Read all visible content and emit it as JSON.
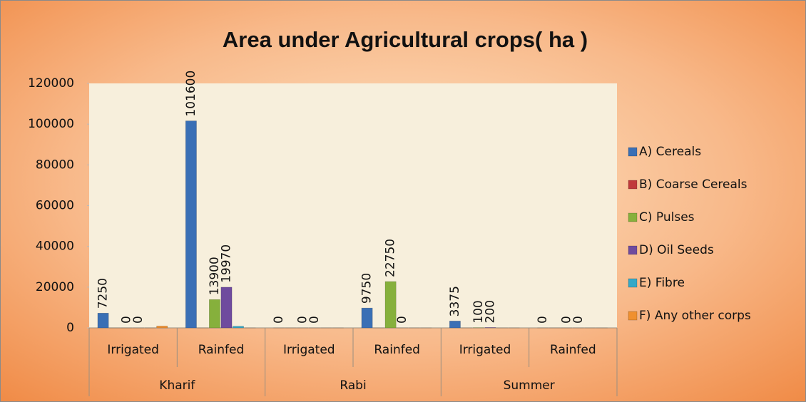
{
  "chart_data": {
    "type": "bar",
    "title": "Area under Agricultural crops( ha )",
    "groups": [
      "Kharif",
      "Rabi",
      "Summer"
    ],
    "categories": [
      "Irrigated",
      "Rainfed",
      "Irrigated",
      "Rainfed",
      "Irrigated",
      "Rainfed"
    ],
    "series": [
      {
        "name": "A) Cereals",
        "color": "#3a6fb5",
        "data_labels": true,
        "values": [
          7250,
          101600,
          0,
          9750,
          3375,
          0
        ]
      },
      {
        "name": "B) Coarse Cereals",
        "color": "#c0393b",
        "data_labels": false,
        "values": [
          0,
          0,
          0,
          0,
          0,
          0
        ]
      },
      {
        "name": "C) Pulses",
        "color": "#86b03c",
        "data_labels": true,
        "values": [
          0,
          13900,
          0,
          22750,
          100,
          0
        ]
      },
      {
        "name": "D) Oil Seeds",
        "color": "#6f4b9e",
        "data_labels": true,
        "values": [
          0,
          19970,
          0,
          0,
          200,
          0
        ]
      },
      {
        "name": "E) Fibre",
        "color": "#35a8c7",
        "data_labels": false,
        "values": [
          0,
          800,
          0,
          0,
          0,
          0
        ]
      },
      {
        "name": "F) Any other corps",
        "color": "#f0902f",
        "data_labels": false,
        "values": [
          900,
          0,
          0,
          0,
          0,
          0
        ]
      }
    ],
    "ylim": [
      0,
      120000
    ],
    "yticks": [
      0,
      20000,
      40000,
      60000,
      80000,
      100000,
      120000
    ],
    "legend": "right"
  }
}
